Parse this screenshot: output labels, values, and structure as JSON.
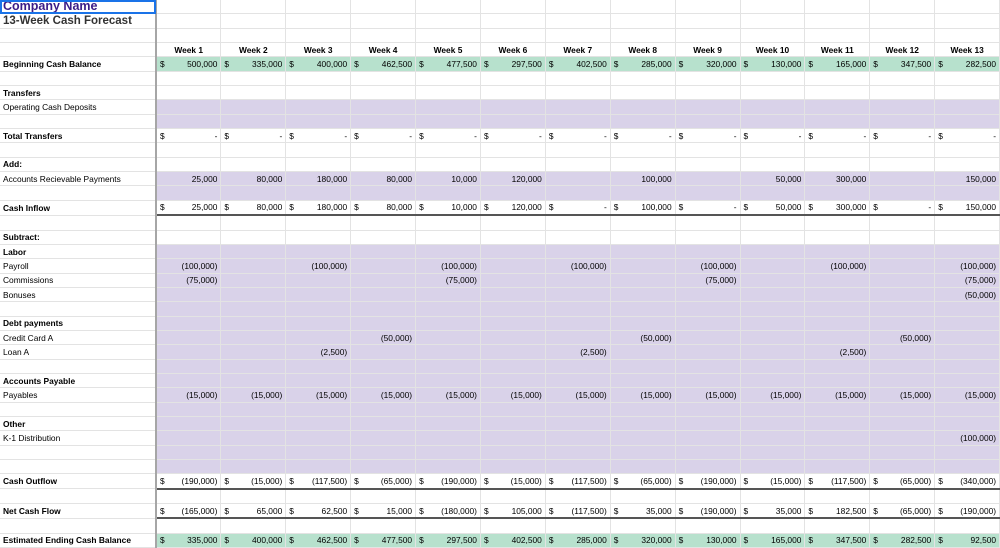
{
  "title": {
    "company": "Company Name",
    "subtitle": "13-Week Cash Forecast"
  },
  "weeks": [
    "Week 1",
    "Week 2",
    "Week 3",
    "Week 4",
    "Week 5",
    "Week 6",
    "Week 7",
    "Week 8",
    "Week 9",
    "Week 10",
    "Week 11",
    "Week 12",
    "Week 13"
  ],
  "colors": {
    "band": "#d9d2e9",
    "green": "#b7e1cd",
    "company": "#3b1c87"
  },
  "rows": [
    {
      "type": "dollar",
      "style": "green",
      "label": "Beginning Cash Balance",
      "bold": true,
      "values": [
        "500,000",
        "335,000",
        "400,000",
        "462,500",
        "477,500",
        "297,500",
        "402,500",
        "285,000",
        "320,000",
        "130,000",
        "165,000",
        "347,500",
        "282,500"
      ]
    },
    {
      "type": "blank",
      "label": ""
    },
    {
      "type": "plain",
      "label": "Transfers",
      "bold": true
    },
    {
      "type": "plain",
      "style": "band",
      "label": "Operating Cash Deposits"
    },
    {
      "type": "blank",
      "style": "band",
      "label": ""
    },
    {
      "type": "dollar",
      "label": "Total Transfers",
      "bold": true,
      "values": [
        "-",
        "-",
        "-",
        "-",
        "-",
        "-",
        "-",
        "-",
        "-",
        "-",
        "-",
        "-",
        "-"
      ]
    },
    {
      "type": "blank",
      "label": ""
    },
    {
      "type": "plain",
      "label": "Add:",
      "bold": true
    },
    {
      "type": "values",
      "style": "band",
      "label": "Accounts Recievable Payments",
      "values": [
        "25,000",
        "80,000",
        "180,000",
        "80,000",
        "10,000",
        "120,000",
        "",
        "100,000",
        "",
        "50,000",
        "300,000",
        "",
        "150,000"
      ]
    },
    {
      "type": "blank",
      "style": "band",
      "label": ""
    },
    {
      "type": "dollar",
      "style": "total",
      "label": "Cash Inflow",
      "bold": true,
      "values": [
        "25,000",
        "80,000",
        "180,000",
        "80,000",
        "10,000",
        "120,000",
        "-",
        "100,000",
        "-",
        "50,000",
        "300,000",
        "-",
        "150,000"
      ]
    },
    {
      "type": "blank",
      "label": ""
    },
    {
      "type": "plain",
      "label": "Subtract:",
      "bold": true
    },
    {
      "type": "plain",
      "style": "band",
      "label": "Labor",
      "bold": true
    },
    {
      "type": "values",
      "style": "band",
      "label": "Payroll",
      "values": [
        "(100,000)",
        "",
        "(100,000)",
        "",
        "(100,000)",
        "",
        "(100,000)",
        "",
        "(100,000)",
        "",
        "(100,000)",
        "",
        "(100,000)"
      ]
    },
    {
      "type": "values",
      "style": "band",
      "label": "Commissions",
      "values": [
        "(75,000)",
        "",
        "",
        "",
        "(75,000)",
        "",
        "",
        "",
        "(75,000)",
        "",
        "",
        "",
        "(75,000)"
      ]
    },
    {
      "type": "values",
      "style": "band",
      "label": "Bonuses",
      "values": [
        "",
        "",
        "",
        "",
        "",
        "",
        "",
        "",
        "",
        "",
        "",
        "",
        "(50,000)"
      ]
    },
    {
      "type": "blank",
      "style": "band",
      "label": ""
    },
    {
      "type": "plain",
      "style": "band",
      "label": "Debt payments",
      "bold": true
    },
    {
      "type": "values",
      "style": "band",
      "label": "Credit Card A",
      "values": [
        "",
        "",
        "",
        "(50,000)",
        "",
        "",
        "",
        "(50,000)",
        "",
        "",
        "",
        "(50,000)",
        ""
      ]
    },
    {
      "type": "values",
      "style": "band",
      "label": "Loan A",
      "values": [
        "",
        "",
        "(2,500)",
        "",
        "",
        "",
        "(2,500)",
        "",
        "",
        "",
        "(2,500)",
        "",
        ""
      ]
    },
    {
      "type": "blank",
      "style": "band",
      "label": ""
    },
    {
      "type": "plain",
      "style": "band",
      "label": "Accounts Payable",
      "bold": true
    },
    {
      "type": "values",
      "style": "band",
      "label": "Payables",
      "values": [
        "(15,000)",
        "(15,000)",
        "(15,000)",
        "(15,000)",
        "(15,000)",
        "(15,000)",
        "(15,000)",
        "(15,000)",
        "(15,000)",
        "(15,000)",
        "(15,000)",
        "(15,000)",
        "(15,000)"
      ]
    },
    {
      "type": "blank",
      "style": "band",
      "label": ""
    },
    {
      "type": "plain",
      "style": "band",
      "label": "Other",
      "bold": true
    },
    {
      "type": "values",
      "style": "band",
      "label": "K-1 Distribution",
      "values": [
        "",
        "",
        "",
        "",
        "",
        "",
        "",
        "",
        "",
        "",
        "",
        "",
        "(100,000)"
      ]
    },
    {
      "type": "blank",
      "style": "band",
      "label": ""
    },
    {
      "type": "blank",
      "style": "band",
      "label": ""
    },
    {
      "type": "dollar",
      "style": "total",
      "label": "Cash Outflow",
      "bold": true,
      "values": [
        "(190,000)",
        "(15,000)",
        "(117,500)",
        "(65,000)",
        "(190,000)",
        "(15,000)",
        "(117,500)",
        "(65,000)",
        "(190,000)",
        "(15,000)",
        "(117,500)",
        "(65,000)",
        "(340,000)"
      ]
    },
    {
      "type": "blank",
      "label": ""
    },
    {
      "type": "dollar",
      "style": "total",
      "label": "Net Cash Flow",
      "bold": true,
      "values": [
        "(165,000)",
        "65,000",
        "62,500",
        "15,000",
        "(180,000)",
        "105,000",
        "(117,500)",
        "35,000",
        "(190,000)",
        "35,000",
        "182,500",
        "(65,000)",
        "(190,000)"
      ]
    },
    {
      "type": "blank",
      "label": ""
    },
    {
      "type": "dollar",
      "style": "green",
      "label": "Estimated Ending Cash Balance",
      "bold": true,
      "values": [
        "335,000",
        "400,000",
        "462,500",
        "477,500",
        "297,500",
        "402,500",
        "285,000",
        "320,000",
        "130,000",
        "165,000",
        "347,500",
        "282,500",
        "92,500"
      ]
    }
  ],
  "dollar_sign": "$"
}
